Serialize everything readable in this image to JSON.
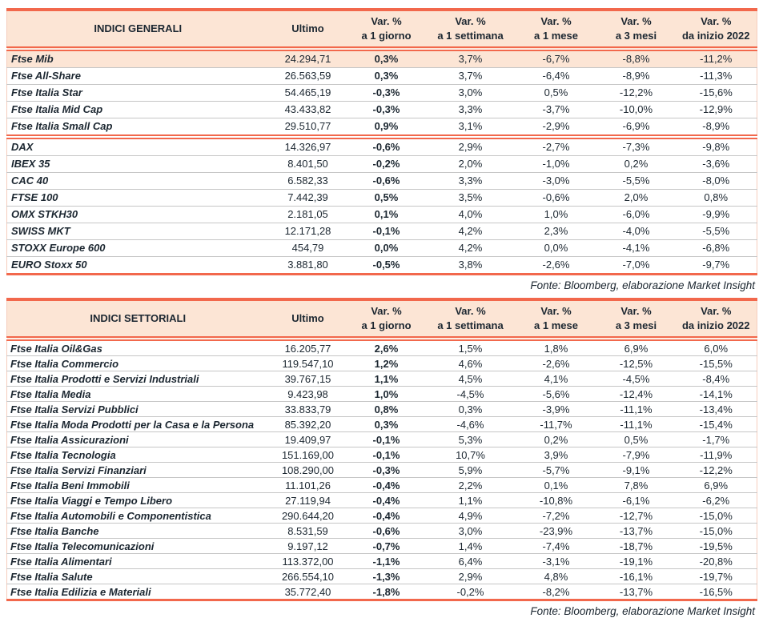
{
  "colors": {
    "accent_border": "#f2684c",
    "header_bg": "#fce5d5",
    "highlight_row_bg": "#fce5d5",
    "row_divider": "#c6c6c6",
    "side_border": "#f6cdbd",
    "text": "#1c2731"
  },
  "tables": [
    {
      "title": "INDICI GENERALI",
      "columns": {
        "ultimo": "Ultimo",
        "var_label": "Var. %",
        "periods": [
          "a 1 giorno",
          "a 1 settimana",
          "a 1 mese",
          "a 3 mesi",
          "da inizio 2022"
        ]
      },
      "rows": [
        {
          "name": "Ftse Mib",
          "ultimo": "24.294,71",
          "values": [
            "0,3%",
            "3,7%",
            "-6,7%",
            "-8,8%",
            "-11,2%"
          ],
          "highlight": true,
          "separator_after": false
        },
        {
          "name": "Ftse All-Share",
          "ultimo": "26.563,59",
          "values": [
            "0,3%",
            "3,7%",
            "-6,4%",
            "-8,9%",
            "-11,3%"
          ],
          "highlight": false,
          "separator_after": false
        },
        {
          "name": "Ftse Italia Star",
          "ultimo": "54.465,19",
          "values": [
            "-0,3%",
            "3,0%",
            "0,5%",
            "-12,2%",
            "-15,6%"
          ],
          "highlight": false,
          "separator_after": false
        },
        {
          "name": "Ftse Italia Mid Cap",
          "ultimo": "43.433,82",
          "values": [
            "-0,3%",
            "3,3%",
            "-3,7%",
            "-10,0%",
            "-12,9%"
          ],
          "highlight": false,
          "separator_after": false
        },
        {
          "name": "Ftse Italia Small Cap",
          "ultimo": "29.510,77",
          "values": [
            "0,9%",
            "3,1%",
            "-2,9%",
            "-6,9%",
            "-8,9%"
          ],
          "highlight": false,
          "separator_after": true
        },
        {
          "name": "DAX",
          "ultimo": "14.326,97",
          "values": [
            "-0,6%",
            "2,9%",
            "-2,7%",
            "-7,3%",
            "-9,8%"
          ],
          "highlight": false,
          "separator_after": false
        },
        {
          "name": "IBEX 35",
          "ultimo": "8.401,50",
          "values": [
            "-0,2%",
            "2,0%",
            "-1,0%",
            "0,2%",
            "-3,6%"
          ],
          "highlight": false,
          "separator_after": false
        },
        {
          "name": "CAC 40",
          "ultimo": "6.582,33",
          "values": [
            "-0,6%",
            "3,3%",
            "-3,0%",
            "-5,5%",
            "-8,0%"
          ],
          "highlight": false,
          "separator_after": false
        },
        {
          "name": "FTSE 100",
          "ultimo": "7.442,39",
          "values": [
            "0,5%",
            "3,5%",
            "-0,6%",
            "2,0%",
            "0,8%"
          ],
          "highlight": false,
          "separator_after": false
        },
        {
          "name": "OMX STKH30",
          "ultimo": "2.181,05",
          "values": [
            "0,1%",
            "4,0%",
            "1,0%",
            "-6,0%",
            "-9,9%"
          ],
          "highlight": false,
          "separator_after": false
        },
        {
          "name": "SWISS MKT",
          "ultimo": "12.171,28",
          "values": [
            "-0,1%",
            "4,2%",
            "2,3%",
            "-4,0%",
            "-5,5%"
          ],
          "highlight": false,
          "separator_after": false
        },
        {
          "name": "STOXX Europe 600",
          "ultimo": "454,79",
          "values": [
            "0,0%",
            "4,2%",
            "0,0%",
            "-4,1%",
            "-6,8%"
          ],
          "highlight": false,
          "separator_after": false
        },
        {
          "name": "EURO Stoxx 50",
          "ultimo": "3.881,80",
          "values": [
            "-0,5%",
            "3,8%",
            "-2,6%",
            "-7,0%",
            "-9,7%"
          ],
          "highlight": false,
          "separator_after": false
        }
      ],
      "fonte": "Fonte: Bloomberg, elaborazione Market Insight"
    },
    {
      "title": "INDICI SETTORIALI",
      "columns": {
        "ultimo": "Ultimo",
        "var_label": "Var. %",
        "periods": [
          "a 1 giorno",
          "a 1 settimana",
          "a 1 mese",
          "a 3 mesi",
          "da inizio 2022"
        ]
      },
      "rows": [
        {
          "name": "Ftse Italia Oil&Gas",
          "ultimo": "16.205,77",
          "values": [
            "2,6%",
            "1,5%",
            "1,8%",
            "6,9%",
            "6,0%"
          ],
          "highlight": false,
          "separator_after": false
        },
        {
          "name": "Ftse Italia Commercio",
          "ultimo": "119.547,10",
          "values": [
            "1,2%",
            "4,6%",
            "-2,6%",
            "-12,5%",
            "-15,5%"
          ],
          "highlight": false,
          "separator_after": false
        },
        {
          "name": "Ftse Italia Prodotti e Servizi Industriali",
          "ultimo": "39.767,15",
          "values": [
            "1,1%",
            "4,5%",
            "4,1%",
            "-4,5%",
            "-8,4%"
          ],
          "highlight": false,
          "separator_after": false
        },
        {
          "name": "Ftse Italia Media",
          "ultimo": "9.423,98",
          "values": [
            "1,0%",
            "-4,5%",
            "-5,6%",
            "-12,4%",
            "-14,1%"
          ],
          "highlight": false,
          "separator_after": false
        },
        {
          "name": "Ftse Italia Servizi Pubblici",
          "ultimo": "33.833,79",
          "values": [
            "0,8%",
            "0,3%",
            "-3,9%",
            "-11,1%",
            "-13,4%"
          ],
          "highlight": false,
          "separator_after": false
        },
        {
          "name": "Ftse Italia Moda Prodotti per la Casa e la Persona",
          "ultimo": "85.392,20",
          "values": [
            "0,3%",
            "-4,6%",
            "-11,7%",
            "-11,1%",
            "-15,4%"
          ],
          "highlight": false,
          "separator_after": false
        },
        {
          "name": "Ftse Italia Assicurazioni",
          "ultimo": "19.409,97",
          "values": [
            "-0,1%",
            "5,3%",
            "0,2%",
            "0,5%",
            "-1,7%"
          ],
          "highlight": false,
          "separator_after": false
        },
        {
          "name": "Ftse Italia Tecnologia",
          "ultimo": "151.169,00",
          "values": [
            "-0,1%",
            "10,7%",
            "3,9%",
            "-7,9%",
            "-11,9%"
          ],
          "highlight": false,
          "separator_after": false
        },
        {
          "name": "Ftse Italia Servizi Finanziari",
          "ultimo": "108.290,00",
          "values": [
            "-0,3%",
            "5,9%",
            "-5,7%",
            "-9,1%",
            "-12,2%"
          ],
          "highlight": false,
          "separator_after": false
        },
        {
          "name": "Ftse Italia Beni Immobili",
          "ultimo": "11.101,26",
          "values": [
            "-0,4%",
            "2,2%",
            "0,1%",
            "7,8%",
            "6,9%"
          ],
          "highlight": false,
          "separator_after": false
        },
        {
          "name": "Ftse Italia Viaggi e Tempo Libero",
          "ultimo": "27.119,94",
          "values": [
            "-0,4%",
            "1,1%",
            "-10,8%",
            "-6,1%",
            "-6,2%"
          ],
          "highlight": false,
          "separator_after": false
        },
        {
          "name": "Ftse Italia Automobili e Componentistica",
          "ultimo": "290.644,20",
          "values": [
            "-0,4%",
            "4,9%",
            "-7,2%",
            "-12,7%",
            "-15,0%"
          ],
          "highlight": false,
          "separator_after": false
        },
        {
          "name": "Ftse Italia Banche",
          "ultimo": "8.531,59",
          "values": [
            "-0,6%",
            "3,0%",
            "-23,9%",
            "-13,7%",
            "-15,0%"
          ],
          "highlight": false,
          "separator_after": false
        },
        {
          "name": "Ftse Italia Telecomunicazioni",
          "ultimo": "9.197,12",
          "values": [
            "-0,7%",
            "1,4%",
            "-7,4%",
            "-18,7%",
            "-19,5%"
          ],
          "highlight": false,
          "separator_after": false
        },
        {
          "name": "Ftse Italia Alimentari",
          "ultimo": "113.372,00",
          "values": [
            "-1,1%",
            "6,4%",
            "-3,1%",
            "-19,1%",
            "-20,8%"
          ],
          "highlight": false,
          "separator_after": false
        },
        {
          "name": "Ftse Italia Salute",
          "ultimo": "266.554,10",
          "values": [
            "-1,3%",
            "2,9%",
            "4,8%",
            "-16,1%",
            "-19,7%"
          ],
          "highlight": false,
          "separator_after": false
        },
        {
          "name": "Ftse Italia Edilizia e Materiali",
          "ultimo": "35.772,40",
          "values": [
            "-1,8%",
            "-0,2%",
            "-8,2%",
            "-13,7%",
            "-16,5%"
          ],
          "highlight": false,
          "separator_after": false
        }
      ],
      "fonte": "Fonte: Bloomberg, elaborazione Market Insight"
    }
  ]
}
